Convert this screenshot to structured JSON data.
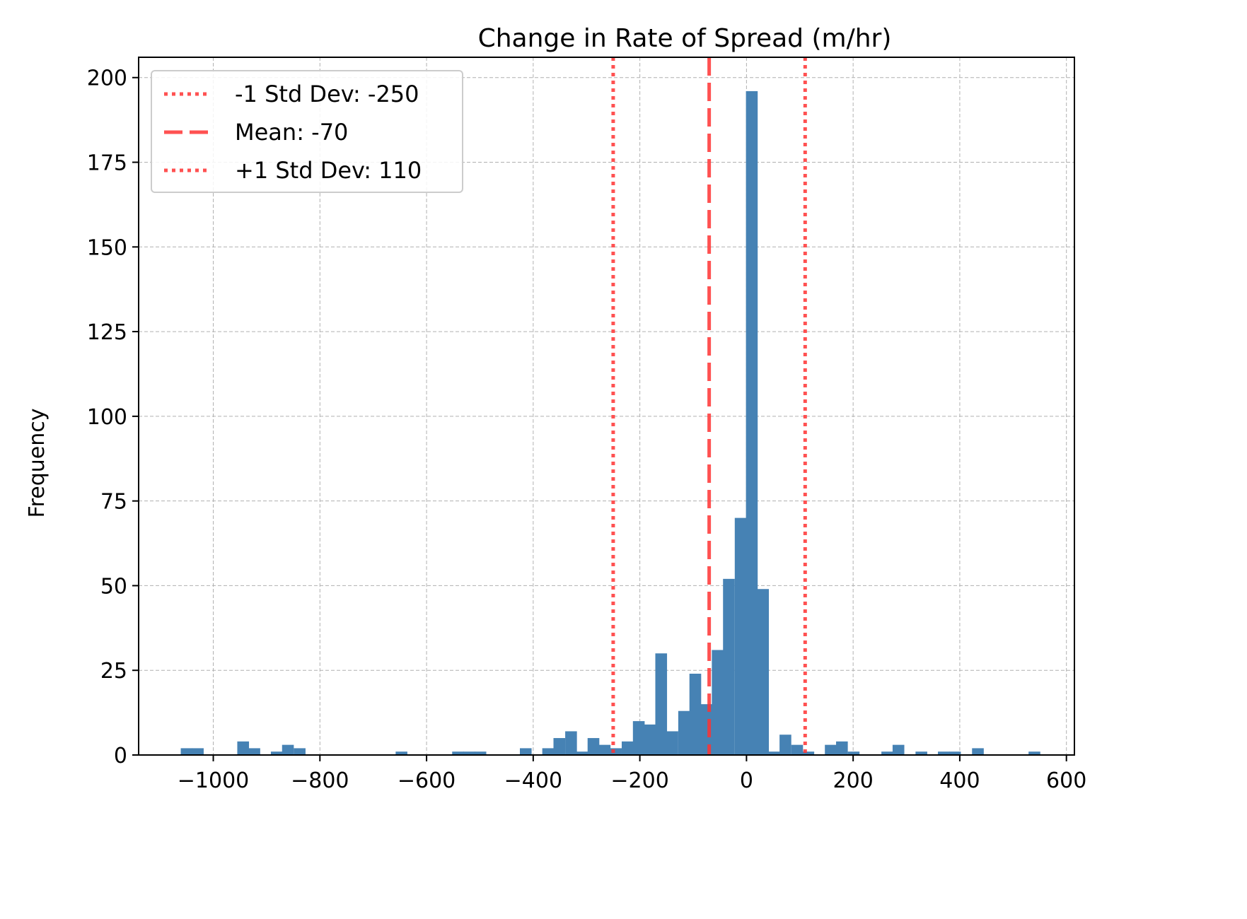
{
  "chart_data": {
    "type": "bar",
    "title": "Change in Rate of Spread (m/hr)",
    "xlabel": "",
    "ylabel": "Frequency",
    "xlim": [
      -1140,
      615
    ],
    "ylim": [
      0,
      206
    ],
    "x_ticks": [
      -1000,
      -800,
      -600,
      -400,
      -200,
      0,
      200,
      400,
      600
    ],
    "x_tick_labels": [
      "−1000",
      "−800",
      "−600",
      "−400",
      "−200",
      "0",
      "200",
      "400",
      "600"
    ],
    "y_ticks": [
      0,
      25,
      50,
      75,
      100,
      125,
      150,
      175,
      200
    ],
    "y_tick_labels": [
      "0",
      "25",
      "50",
      "75",
      "100",
      "125",
      "150",
      "175",
      "200"
    ],
    "grid": true,
    "legend_position": "top-left",
    "bar_color": "#4682b4",
    "bin_width": 21.2,
    "bins": [
      {
        "x0": -1061,
        "count": 2
      },
      {
        "x0": -1040,
        "count": 2
      },
      {
        "x0": -955,
        "count": 4
      },
      {
        "x0": -934,
        "count": 2
      },
      {
        "x0": -892,
        "count": 1
      },
      {
        "x0": -871,
        "count": 3
      },
      {
        "x0": -849,
        "count": 2
      },
      {
        "x0": -658,
        "count": 1
      },
      {
        "x0": -552,
        "count": 1
      },
      {
        "x0": -531,
        "count": 1
      },
      {
        "x0": -510,
        "count": 1
      },
      {
        "x0": -425,
        "count": 2
      },
      {
        "x0": -383,
        "count": 2
      },
      {
        "x0": -362,
        "count": 5
      },
      {
        "x0": -340,
        "count": 7
      },
      {
        "x0": -319,
        "count": 1
      },
      {
        "x0": -298,
        "count": 5
      },
      {
        "x0": -277,
        "count": 3
      },
      {
        "x0": -256,
        "count": 2
      },
      {
        "x0": -234,
        "count": 4
      },
      {
        "x0": -213,
        "count": 10
      },
      {
        "x0": -192,
        "count": 9
      },
      {
        "x0": -171,
        "count": 30
      },
      {
        "x0": -150,
        "count": 7
      },
      {
        "x0": -128,
        "count": 13
      },
      {
        "x0": -107,
        "count": 24
      },
      {
        "x0": -86,
        "count": 15
      },
      {
        "x0": -65,
        "count": 31
      },
      {
        "x0": -44,
        "count": 52
      },
      {
        "x0": -22,
        "count": 70
      },
      {
        "x0": -1,
        "count": 196
      },
      {
        "x0": 20,
        "count": 49
      },
      {
        "x0": 41,
        "count": 1
      },
      {
        "x0": 62,
        "count": 6
      },
      {
        "x0": 84,
        "count": 3
      },
      {
        "x0": 105,
        "count": 1
      },
      {
        "x0": 147,
        "count": 3
      },
      {
        "x0": 168,
        "count": 4
      },
      {
        "x0": 190,
        "count": 1
      },
      {
        "x0": 253,
        "count": 1
      },
      {
        "x0": 274,
        "count": 3
      },
      {
        "x0": 317,
        "count": 1
      },
      {
        "x0": 359,
        "count": 1
      },
      {
        "x0": 380,
        "count": 1
      },
      {
        "x0": 423,
        "count": 2
      },
      {
        "x0": 529,
        "count": 1
      }
    ],
    "vlines": [
      {
        "x": -250,
        "style": "dotted",
        "color": "#ff3333",
        "label": "-1 Std Dev: -250"
      },
      {
        "x": -70,
        "style": "dashed",
        "color": "#ff3333",
        "label": "Mean: -70"
      },
      {
        "x": 110,
        "style": "dotted",
        "color": "#ff3333",
        "label": "+1 Std Dev: 110"
      }
    ]
  }
}
